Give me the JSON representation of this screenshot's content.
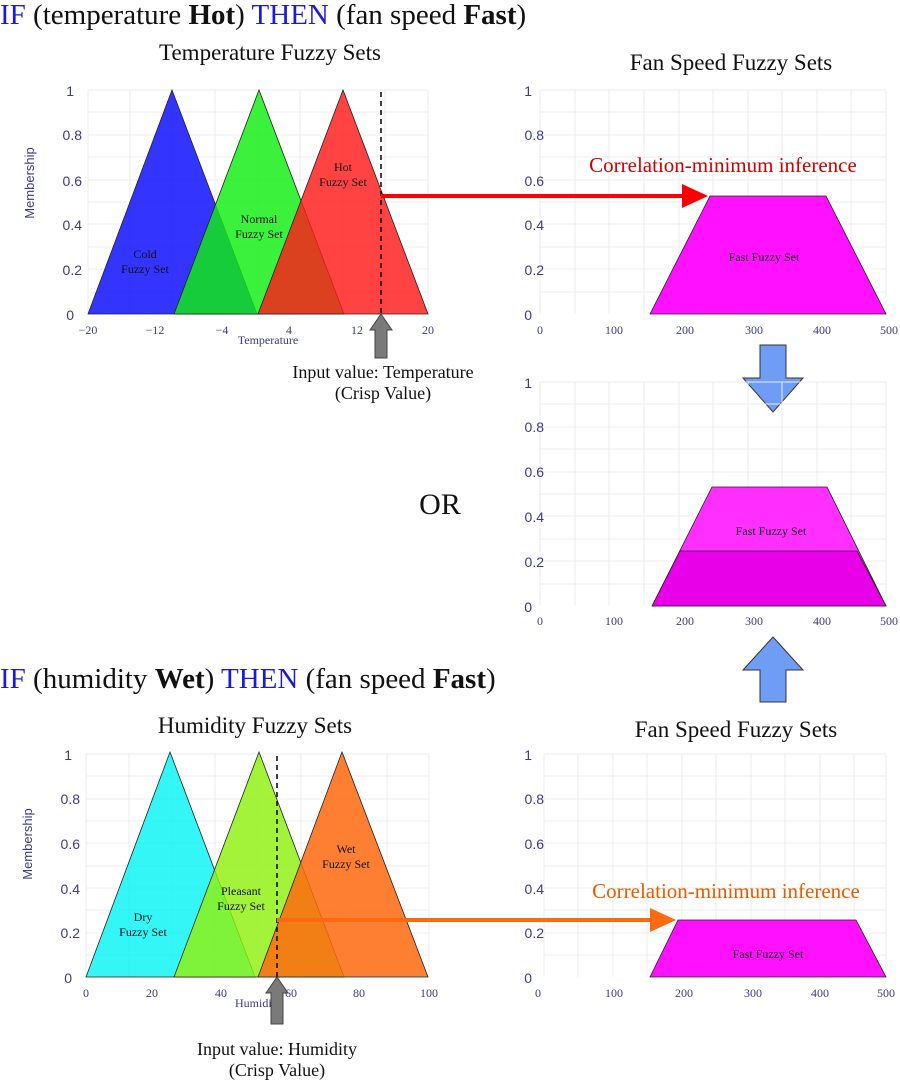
{
  "rule1": {
    "if": "IF",
    "open1": " (temperature ",
    "term1": "Hot",
    "close1": ") ",
    "then": "THEN",
    "open2": " (fan speed ",
    "term2": "Fast",
    "close2": ")"
  },
  "rule2": {
    "if": "IF",
    "open1": " (humidity ",
    "term1": "Wet",
    "close1": ") ",
    "then": "THEN",
    "open2": " (fan speed ",
    "term2": "Fast",
    "close2": ")"
  },
  "or_label": "OR",
  "inference_label": "Correlation-minimum inference",
  "colors": {
    "keyword_blue": "#1a1ad8",
    "arrow_red": "#ff0000",
    "arrow_orange": "#ff6a10",
    "down_arrow": "#6f9df5",
    "input_arrow": "#7a7a7a"
  },
  "temperature_panel": {
    "title": "Temperature Fuzzy Sets",
    "ylabel": "Membership",
    "xlabel": "Temperature",
    "y_ticks": [
      "0",
      "0.2",
      "0.4",
      "0.6",
      "0.8",
      "1"
    ],
    "x_ticks": [
      "−20",
      "−12",
      "−4",
      "4",
      "12",
      "20"
    ],
    "sets": [
      {
        "label1": "Cold",
        "label2": "Fuzzy Set"
      },
      {
        "label1": "Normal",
        "label2": "Fuzzy Set"
      },
      {
        "label1": "Hot",
        "label2": "Fuzzy Set"
      }
    ],
    "input_label1": "Input value: Temperature",
    "input_label2": "(Crisp Value)"
  },
  "fan1_panel": {
    "title": "Fan Speed Fuzzy Sets",
    "y_ticks": [
      "0",
      "0.2",
      "0.4",
      "0.6",
      "0.8",
      "1"
    ],
    "x_ticks": [
      "0",
      "100",
      "200",
      "300",
      "400",
      "500"
    ],
    "set_label": "Fast Fuzzy Set"
  },
  "combined_panel": {
    "y_ticks": [
      "0",
      "0.2",
      "0.4",
      "0.6",
      "0.8",
      "1"
    ],
    "x_ticks": [
      "0",
      "100",
      "200",
      "300",
      "400",
      "500"
    ],
    "set_label": "Fast Fuzzy Set"
  },
  "humidity_panel": {
    "title": "Humidity Fuzzy Sets",
    "ylabel": "Membership",
    "xlabel": "Humidity",
    "y_ticks": [
      "0",
      "0.2",
      "0.4",
      "0.6",
      "0.8",
      "1"
    ],
    "x_ticks": [
      "0",
      "20",
      "40",
      "60",
      "80",
      "100"
    ],
    "sets": [
      {
        "label1": "Dry",
        "label2": "Fuzzy Set"
      },
      {
        "label1": "Pleasant",
        "label2": "Fuzzy Set"
      },
      {
        "label1": "Wet",
        "label2": "Fuzzy Set"
      }
    ],
    "input_label1": "Input value: Humidity",
    "input_label2": "(Crisp Value)"
  },
  "fan2_panel": {
    "title": "Fan Speed Fuzzy Sets",
    "y_ticks": [
      "0",
      "0.2",
      "0.4",
      "0.6",
      "0.8",
      "1"
    ],
    "x_ticks": [
      "0",
      "100",
      "200",
      "300",
      "400",
      "500"
    ],
    "set_label": "Fast Fuzzy Set"
  }
}
